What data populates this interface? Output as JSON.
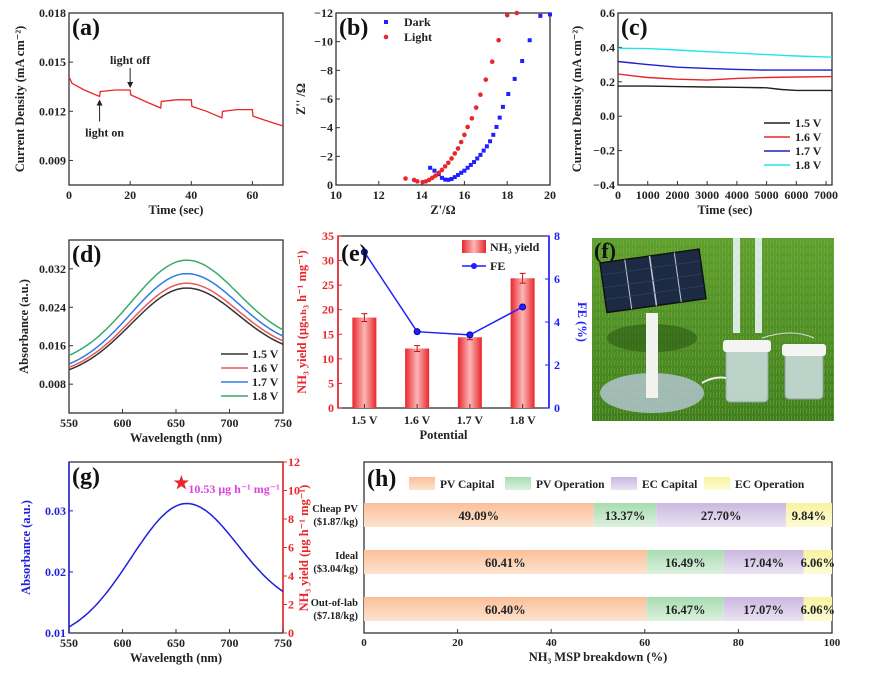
{
  "figure": {
    "panels": [
      "(a)",
      "(b)",
      "(c)",
      "(d)",
      "(e)",
      "(f)",
      "(g)",
      "(h)"
    ]
  },
  "chart_data": [
    {
      "panel": "(a)",
      "type": "line",
      "xlabel": "Time (sec)",
      "ylabel": "Current Density (mA cm⁻²)",
      "xlim": [
        0,
        70
      ],
      "ylim": [
        0.0075,
        0.018
      ],
      "xticks": [
        0,
        20,
        40,
        60
      ],
      "yticks": [
        0.009,
        0.012,
        0.015,
        0.018
      ],
      "ytick_labels": [
        "0.009",
        "0.012",
        "0.015",
        "0.018"
      ],
      "annotations": [
        {
          "text": "light on",
          "x": 10,
          "y": 0.0129
        },
        {
          "text": "light off",
          "x": 20,
          "y": 0.0133
        }
      ],
      "color": "#e8262b",
      "series": [
        {
          "name": "current",
          "x": [
            0,
            1,
            5,
            10,
            10.2,
            15,
            20,
            20.2,
            25,
            30,
            30.2,
            35,
            40,
            40.2,
            45,
            50,
            50.2,
            55,
            60,
            60.2,
            65,
            70
          ],
          "y": [
            0.0141,
            0.0137,
            0.0133,
            0.0129,
            0.0132,
            0.0133,
            0.0133,
            0.013,
            0.0126,
            0.0122,
            0.0126,
            0.0127,
            0.0127,
            0.0123,
            0.012,
            0.0116,
            0.012,
            0.0121,
            0.0121,
            0.0117,
            0.0114,
            0.0111
          ]
        }
      ]
    },
    {
      "panel": "(b)",
      "type": "scatter",
      "xlabel": "Z'/Ω",
      "ylabel": "Z'' /Ω",
      "xlim": [
        10,
        20
      ],
      "ylim": [
        0,
        -12
      ],
      "xticks": [
        10,
        12,
        14,
        16,
        18,
        20
      ],
      "yticks": [
        0,
        -2,
        -4,
        -6,
        -8,
        -10,
        -12
      ],
      "ytick_labels": [
        "0",
        "−2",
        "−4",
        "−6",
        "−8",
        "−10",
        "−12"
      ],
      "legend": [
        "Dark",
        "Light"
      ],
      "legend_position": "top-left",
      "series": [
        {
          "name": "Dark",
          "color": "#1f1fff",
          "x": [
            14.4,
            14.6,
            14.8,
            14.95,
            15.1,
            15.25,
            15.4,
            15.55,
            15.7,
            15.85,
            16.0,
            16.15,
            16.3,
            16.45,
            16.6,
            16.75,
            16.9,
            17.05,
            17.2,
            17.35,
            17.5,
            17.65,
            17.8,
            18.05,
            18.35,
            18.7,
            19.05,
            19.55,
            20.0
          ],
          "y": [
            -1.2,
            -1.0,
            -0.75,
            -0.5,
            -0.38,
            -0.36,
            -0.42,
            -0.55,
            -0.7,
            -0.85,
            -1.0,
            -1.2,
            -1.4,
            -1.6,
            -1.85,
            -2.1,
            -2.4,
            -2.7,
            -3.05,
            -3.5,
            -4.05,
            -4.7,
            -5.45,
            -6.35,
            -7.4,
            -8.65,
            -10.1,
            -11.8,
            -11.9
          ]
        },
        {
          "name": "Light",
          "color": "#e8262b",
          "x": [
            13.25,
            13.65,
            13.8,
            14.05,
            14.2,
            14.35,
            14.5,
            14.65,
            14.8,
            14.95,
            15.1,
            15.25,
            15.4,
            15.55,
            15.7,
            15.85,
            16.0,
            16.15,
            16.35,
            16.55,
            16.75,
            17.0,
            17.3,
            17.6,
            18.0,
            18.45
          ],
          "y": [
            -0.45,
            -0.35,
            -0.25,
            -0.2,
            -0.25,
            -0.35,
            -0.5,
            -0.65,
            -0.85,
            -1.05,
            -1.3,
            -1.55,
            -1.85,
            -2.2,
            -2.55,
            -3.0,
            -3.5,
            -4.05,
            -4.65,
            -5.4,
            -6.3,
            -7.35,
            -8.6,
            -10.1,
            -11.85,
            -12
          ]
        }
      ]
    },
    {
      "panel": "(c)",
      "type": "line",
      "xlabel": "Time (sec)",
      "ylabel": "Current Density (mA cm⁻²)",
      "xlim": [
        0,
        7200
      ],
      "ylim": [
        -0.4,
        0.6
      ],
      "xticks": [
        0,
        1000,
        2000,
        3000,
        4000,
        5000,
        6000,
        7000
      ],
      "yticks": [
        -0.4,
        -0.2,
        0.0,
        0.2,
        0.4,
        0.6
      ],
      "ytick_labels": [
        "−0.4",
        "−0.2",
        "0.0",
        "0.2",
        "0.4",
        "0.6"
      ],
      "legend_position": "bottom-right",
      "series": [
        {
          "name": "1.5 V",
          "color": "#222222",
          "x": [
            0,
            1000,
            2000,
            3000,
            4000,
            5000,
            5500,
            6000,
            7200
          ],
          "y": [
            0.175,
            0.175,
            0.172,
            0.17,
            0.168,
            0.165,
            0.155,
            0.15,
            0.15
          ]
        },
        {
          "name": "1.6 V",
          "color": "#e8262b",
          "x": [
            0,
            1000,
            2000,
            3000,
            4000,
            5000,
            6000,
            7200
          ],
          "y": [
            0.245,
            0.225,
            0.215,
            0.21,
            0.22,
            0.225,
            0.228,
            0.23
          ]
        },
        {
          "name": "1.7 V",
          "color": "#1f1fcc",
          "x": [
            0,
            1000,
            2000,
            3000,
            4000,
            5000,
            6000,
            7200
          ],
          "y": [
            0.318,
            0.3,
            0.285,
            0.278,
            0.272,
            0.268,
            0.268,
            0.268
          ]
        },
        {
          "name": "1.8 V",
          "color": "#1ee6ee",
          "x": [
            0,
            1000,
            2000,
            3000,
            4000,
            5000,
            6000,
            7200
          ],
          "y": [
            0.395,
            0.393,
            0.385,
            0.375,
            0.367,
            0.358,
            0.35,
            0.343
          ]
        }
      ]
    },
    {
      "panel": "(d)",
      "type": "line",
      "xlabel": "Wavelength (nm)",
      "ylabel": "Absorbance (a.u.)",
      "xlim": [
        550,
        750
      ],
      "ylim": [
        0.002,
        0.038
      ],
      "xticks": [
        550,
        600,
        650,
        700,
        750
      ],
      "yticks": [
        0.008,
        0.016,
        0.024,
        0.032
      ],
      "ytick_labels": [
        "0.008",
        "0.016",
        "0.024",
        "0.032"
      ],
      "legend_position": "bottom-right",
      "peak_nm": 660,
      "series": [
        {
          "name": "1.5 V",
          "color": "#333333",
          "start": 0.011,
          "peak": 0.028,
          "end": 0.0163
        },
        {
          "name": "1.6 V",
          "color": "#e85a5a",
          "start": 0.0115,
          "peak": 0.029,
          "end": 0.017
        },
        {
          "name": "1.7 V",
          "color": "#2e7be6",
          "start": 0.0122,
          "peak": 0.031,
          "end": 0.018
        },
        {
          "name": "1.8 V",
          "color": "#3aaa6a",
          "start": 0.014,
          "peak": 0.0338,
          "end": 0.0193
        }
      ]
    },
    {
      "panel": "(e)",
      "type": "bar",
      "xlabel": "Potential",
      "ylabel": "NH₃ yield (μgₙₕ₃ h⁻¹ mg⁻¹)",
      "ylabel_right": "FE (%)",
      "categories": [
        "1.5 V",
        "1.6 V",
        "1.7 V",
        "1.8 V"
      ],
      "ylim": [
        0,
        35
      ],
      "yticks": [
        0,
        5,
        10,
        15,
        20,
        25,
        30,
        35
      ],
      "ylim_right": [
        0,
        8
      ],
      "yticks_right": [
        0,
        2,
        4,
        6,
        8
      ],
      "legend": [
        "NH₃ yield",
        "FE"
      ],
      "legend_position": "top-right",
      "series": [
        {
          "name": "NH₃ yield",
          "type": "bar",
          "color": "#e8262b",
          "values": [
            18.4,
            12.1,
            14.4,
            26.4
          ],
          "errors": [
            0.8,
            0.6,
            0.5,
            1.0
          ]
        },
        {
          "name": "FE",
          "type": "line",
          "color": "#1f1fff",
          "values": [
            7.25,
            3.55,
            3.4,
            4.7
          ]
        }
      ]
    },
    {
      "panel": "(g)",
      "type": "line",
      "xlabel": "Wavelength (nm)",
      "ylabel": "Absorbance (a.u.)",
      "ylabel_right": "NH₃ yield (μg h⁻¹ mg⁻¹)",
      "xlim": [
        550,
        750
      ],
      "ylim": [
        0.01,
        0.038
      ],
      "xticks": [
        550,
        600,
        650,
        700,
        750
      ],
      "yticks": [
        0.01,
        0.02,
        0.03
      ],
      "ytick_labels": [
        "0.01",
        "0.02",
        "0.03"
      ],
      "ylim_right": [
        0,
        12
      ],
      "yticks_right": [
        0,
        2,
        4,
        6,
        8,
        10,
        12
      ],
      "annotation": {
        "text": "10.53 μg h⁻¹ mg⁻¹",
        "x": 655,
        "y_right": 10.53,
        "marker": "star",
        "color": "#e040e0",
        "marker_color": "#e8262b"
      },
      "series": [
        {
          "name": "absorbance",
          "color": "#1f1fdd",
          "start": 0.011,
          "peak": 0.0312,
          "peak_nm": 660,
          "end": 0.0168
        }
      ]
    },
    {
      "panel": "(h)",
      "type": "bar",
      "orientation": "horizontal-stacked",
      "xlabel": "NH₃ MSP breakdown (%)",
      "xlim": [
        0,
        100
      ],
      "xticks": [
        0,
        20,
        40,
        60,
        80,
        100
      ],
      "legend": [
        "PV Capital",
        "PV Operation",
        "EC Capital",
        "EC Operation"
      ],
      "legend_position": "top",
      "colors": [
        "#fcc9a6",
        "#bfe6c4",
        "#d6c8e6",
        "#fbf7b4"
      ],
      "categories": [
        {
          "name": "Cheap PV",
          "price": "($1.87/kg)"
        },
        {
          "name": "Ideal",
          "price": "($3.04/kg)"
        },
        {
          "name": "Out-of-lab",
          "price": "($7.18/kg)"
        }
      ],
      "series": [
        {
          "name": "PV Capital",
          "values": [
            49.09,
            60.41,
            60.4
          ],
          "labels": [
            "49.09%",
            "60.41%",
            "60.40%"
          ]
        },
        {
          "name": "PV Operation",
          "values": [
            13.37,
            16.49,
            16.47
          ],
          "labels": [
            "13.37%",
            "16.49%",
            "16.47%"
          ]
        },
        {
          "name": "EC Capital",
          "values": [
            27.7,
            17.04,
            17.07
          ],
          "labels": [
            "27.70%",
            "17.04%",
            "17.07%"
          ]
        },
        {
          "name": "EC Operation",
          "values": [
            9.84,
            6.06,
            6.06
          ],
          "labels": [
            "9.84%",
            "6.06%",
            "6.06%"
          ]
        }
      ]
    }
  ],
  "photo": {
    "panel": "(f)",
    "description": "Solar panel powering electrolysis cells on grass"
  }
}
